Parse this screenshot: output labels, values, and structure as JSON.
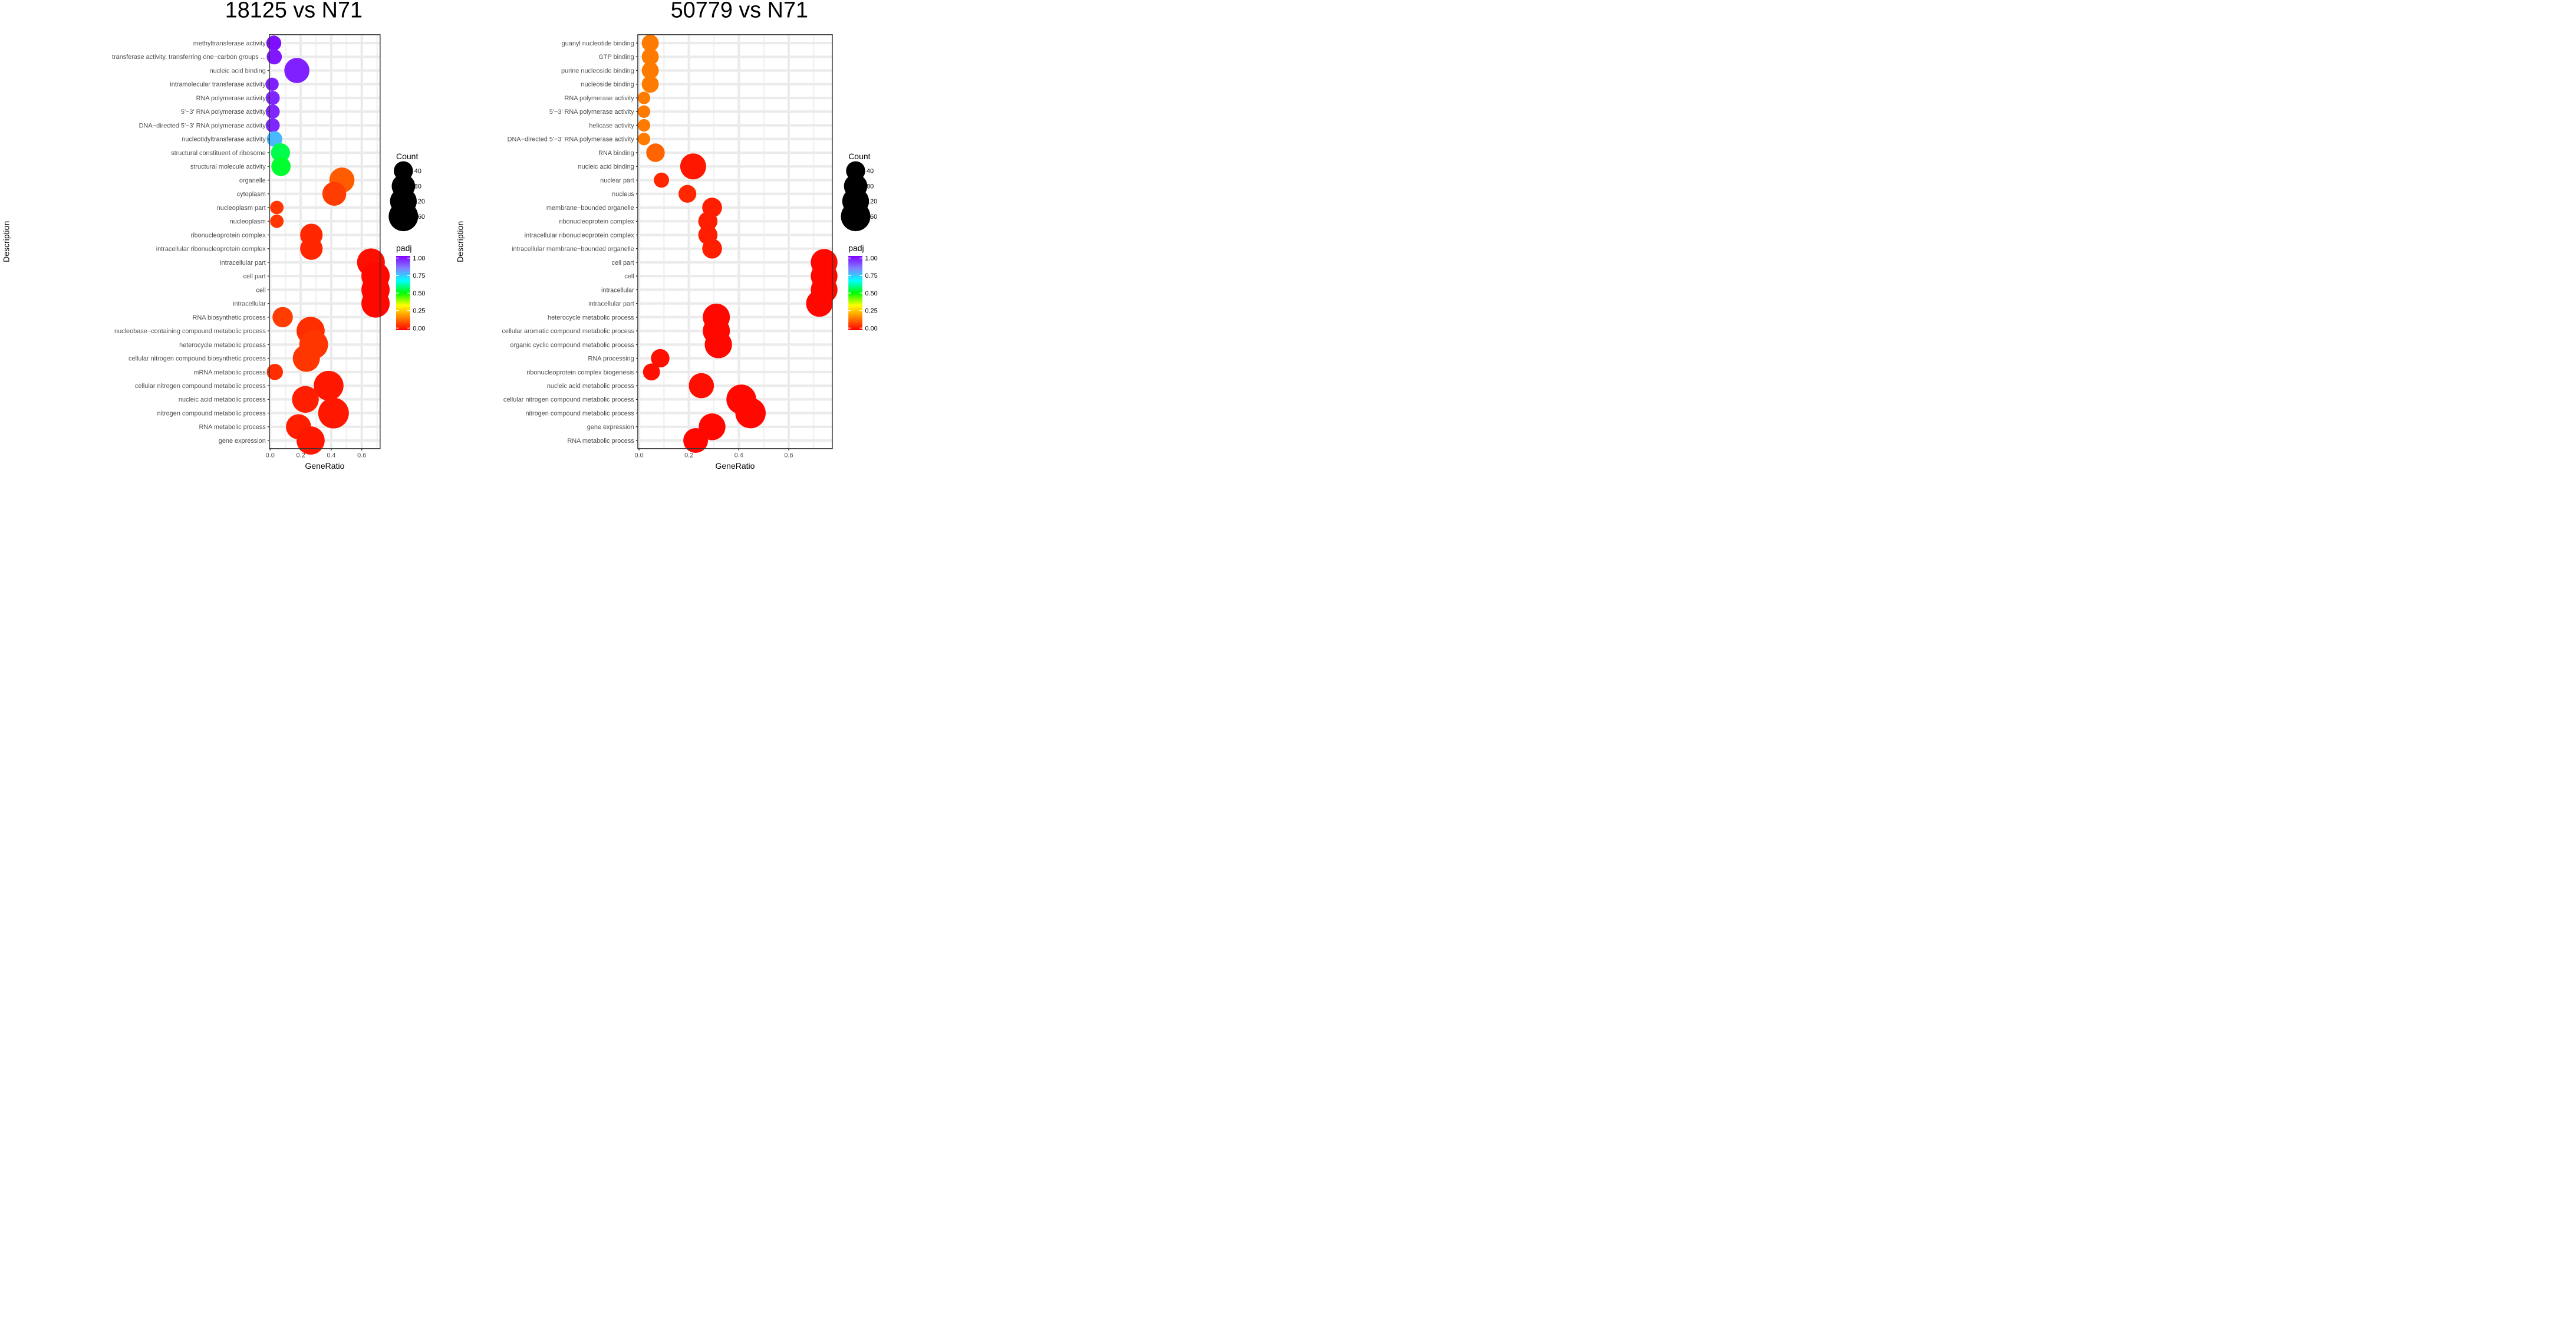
{
  "chart_data": [
    {
      "type": "scatter",
      "title": "18125 vs N71",
      "xlabel": "GeneRatio",
      "ylabel": "Description",
      "xlim": [
        -0.005,
        0.72
      ],
      "xticks": [
        0,
        0.2,
        0.4,
        0.6
      ],
      "xtick_labels": [
        "0.0",
        "0.2",
        "0.4",
        "0.6"
      ],
      "grid": true,
      "categories": [
        "methyltransferase activity",
        "transferase activity, transferring one−carbon groups ...",
        "nucleic acid binding",
        "intramolecular transferase activity",
        "RNA polymerase activity",
        "5'−3' RNA polymerase activity",
        "DNA−directed 5'−3' RNA polymerase activity",
        "nucleotidyltransferase activity",
        "structural constituent of ribosome",
        "structural molecule activity",
        "organelle",
        "cytoplasm",
        "nucleoplasm part",
        "nucleoplasm",
        "ribonucleoprotein complex",
        "intracellular ribonucleoprotein complex",
        "intracellular part",
        "cell part",
        "cell",
        "intracellular",
        "RNA biosynthetic process",
        "nucleobase−containing compound metabolic process",
        "heterocycle metabolic process",
        "cellular nitrogen compound biosynthetic process",
        "mRNA metabolic process",
        "cellular nitrogen compound metabolic process",
        "nucleic acid metabolic process",
        "nitrogen compound metabolic process",
        "RNA metabolic process",
        "gene expression"
      ],
      "points": [
        {
          "gene_ratio": 0.024,
          "count": 14,
          "padj": 0.98
        },
        {
          "gene_ratio": 0.027,
          "count": 15,
          "padj": 0.97
        },
        {
          "gene_ratio": 0.175,
          "count": 100,
          "padj": 0.96
        },
        {
          "gene_ratio": 0.013,
          "count": 7,
          "padj": 0.96
        },
        {
          "gene_ratio": 0.017,
          "count": 10,
          "padj": 0.95
        },
        {
          "gene_ratio": 0.017,
          "count": 10,
          "padj": 0.95
        },
        {
          "gene_ratio": 0.017,
          "count": 10,
          "padj": 0.95
        },
        {
          "gene_ratio": 0.029,
          "count": 17,
          "padj": 0.76
        },
        {
          "gene_ratio": 0.068,
          "count": 39,
          "padj": 0.55
        },
        {
          "gene_ratio": 0.071,
          "count": 41,
          "padj": 0.53
        },
        {
          "gene_ratio": 0.47,
          "count": 100,
          "padj": 0.12
        },
        {
          "gene_ratio": 0.42,
          "count": 85,
          "padj": 0.08
        },
        {
          "gene_ratio": 0.044,
          "count": 8,
          "padj": 0.07
        },
        {
          "gene_ratio": 0.044,
          "count": 8,
          "padj": 0.07
        },
        {
          "gene_ratio": 0.27,
          "count": 70,
          "padj": 0.05
        },
        {
          "gene_ratio": 0.27,
          "count": 70,
          "padj": 0.05
        },
        {
          "gene_ratio": 0.66,
          "count": 135,
          "padj": 0.02
        },
        {
          "gene_ratio": 0.69,
          "count": 142,
          "padj": 0.01
        },
        {
          "gene_ratio": 0.69,
          "count": 142,
          "padj": 0.01
        },
        {
          "gene_ratio": 0.69,
          "count": 142,
          "padj": 0.01
        },
        {
          "gene_ratio": 0.082,
          "count": 50,
          "padj": 0.08
        },
        {
          "gene_ratio": 0.265,
          "count": 140,
          "padj": 0.06
        },
        {
          "gene_ratio": 0.285,
          "count": 150,
          "padj": 0.07
        },
        {
          "gene_ratio": 0.237,
          "count": 125,
          "padj": 0.07
        },
        {
          "gene_ratio": 0.031,
          "count": 20,
          "padj": 0.06
        },
        {
          "gene_ratio": 0.383,
          "count": 165,
          "padj": 0.03
        },
        {
          "gene_ratio": 0.231,
          "count": 120,
          "padj": 0.04
        },
        {
          "gene_ratio": 0.415,
          "count": 180,
          "padj": 0.03
        },
        {
          "gene_ratio": 0.186,
          "count": 100,
          "padj": 0.04
        },
        {
          "gene_ratio": 0.265,
          "count": 140,
          "padj": 0.03
        }
      ],
      "size_legend": {
        "title": "Count",
        "values": [
          40,
          80,
          120,
          160
        ]
      },
      "color_legend": {
        "title": "padj",
        "labels": [
          "1.00",
          "0.75",
          "0.50",
          "0.25",
          "0.00"
        ],
        "range": [
          0,
          1
        ],
        "colors": [
          "#ff0000",
          "#ff8000",
          "#ffff00",
          "#00ff00",
          "#00ffff",
          "#8080ff",
          "#8000ff"
        ]
      }
    },
    {
      "type": "scatter",
      "title": "50779 vs N71",
      "xlabel": "GeneRatio",
      "ylabel": "Description",
      "xlim": [
        -0.005,
        0.775
      ],
      "xticks": [
        0,
        0.2,
        0.4,
        0.6
      ],
      "xtick_labels": [
        "0.0",
        "0.2",
        "0.4",
        "0.6"
      ],
      "grid": true,
      "categories": [
        "guanyl nucleotide binding",
        "GTP binding",
        "purine nucleoside binding",
        "nucleoside binding",
        "RNA polymerase activity",
        "5'−3' RNA polymerase activity",
        "helicase activity",
        "DNA−directed 5'−3' RNA polymerase activity",
        "RNA binding",
        "nucleic acid binding",
        "nuclear part",
        "nucleus",
        "membrane−bounded organelle",
        "ribonucleoprotein complex",
        "intracellular ribonucleoprotein complex",
        "intracellular membrane−bounded organelle",
        "cell part",
        "cell",
        "intracellular",
        "intracellular part",
        "heterocycle metabolic process",
        "cellular aromatic compound metabolic process",
        "organic cyclic compound metabolic process",
        "RNA processing",
        "ribonucleoprotein complex biogenesis",
        "nucleic acid metabolic process",
        "cellular nitrogen compound metabolic process",
        "nitrogen compound metabolic process",
        "gene expression",
        "RNA metabolic process"
      ],
      "points": [
        {
          "gene_ratio": 0.045,
          "count": 25,
          "padj": 0.16
        },
        {
          "gene_ratio": 0.045,
          "count": 25,
          "padj": 0.16
        },
        {
          "gene_ratio": 0.045,
          "count": 25,
          "padj": 0.16
        },
        {
          "gene_ratio": 0.045,
          "count": 25,
          "padj": 0.16
        },
        {
          "gene_ratio": 0.02,
          "count": 5,
          "padj": 0.16
        },
        {
          "gene_ratio": 0.02,
          "count": 5,
          "padj": 0.16
        },
        {
          "gene_ratio": 0.02,
          "count": 5,
          "padj": 0.16
        },
        {
          "gene_ratio": 0.02,
          "count": 5,
          "padj": 0.16
        },
        {
          "gene_ratio": 0.066,
          "count": 35,
          "padj": 0.13
        },
        {
          "gene_ratio": 0.217,
          "count": 110,
          "padj": 0.03
        },
        {
          "gene_ratio": 0.09,
          "count": 15,
          "padj": 0.05
        },
        {
          "gene_ratio": 0.194,
          "count": 30,
          "padj": 0.05
        },
        {
          "gene_ratio": 0.293,
          "count": 45,
          "padj": 0.04
        },
        {
          "gene_ratio": 0.276,
          "count": 40,
          "padj": 0.04
        },
        {
          "gene_ratio": 0.276,
          "count": 40,
          "padj": 0.04
        },
        {
          "gene_ratio": 0.293,
          "count": 45,
          "padj": 0.04
        },
        {
          "gene_ratio": 0.742,
          "count": 120,
          "padj": 0.01
        },
        {
          "gene_ratio": 0.742,
          "count": 120,
          "padj": 0.01
        },
        {
          "gene_ratio": 0.742,
          "count": 120,
          "padj": 0.01
        },
        {
          "gene_ratio": 0.723,
          "count": 118,
          "padj": 0.01
        },
        {
          "gene_ratio": 0.31,
          "count": 125,
          "padj": 0.01
        },
        {
          "gene_ratio": 0.31,
          "count": 125,
          "padj": 0.01
        },
        {
          "gene_ratio": 0.318,
          "count": 128,
          "padj": 0.01
        },
        {
          "gene_ratio": 0.085,
          "count": 35,
          "padj": 0.02
        },
        {
          "gene_ratio": 0.05,
          "count": 25,
          "padj": 0.02
        },
        {
          "gene_ratio": 0.25,
          "count": 100,
          "padj": 0.02
        },
        {
          "gene_ratio": 0.41,
          "count": 165,
          "padj": 0.01
        },
        {
          "gene_ratio": 0.447,
          "count": 175,
          "padj": 0.01
        },
        {
          "gene_ratio": 0.293,
          "count": 120,
          "padj": 0.01
        },
        {
          "gene_ratio": 0.227,
          "count": 95,
          "padj": 0.01
        }
      ],
      "size_legend": {
        "title": "Count",
        "values": [
          40,
          80,
          120,
          160
        ]
      },
      "color_legend": {
        "title": "padj",
        "labels": [
          "1.00",
          "0.75",
          "0.50",
          "0.25",
          "0.00"
        ],
        "range": [
          0,
          1
        ],
        "colors": [
          "#ff0000",
          "#ff8000",
          "#ffff00",
          "#00ff00",
          "#00ffff",
          "#8080ff",
          "#8000ff"
        ]
      }
    }
  ]
}
